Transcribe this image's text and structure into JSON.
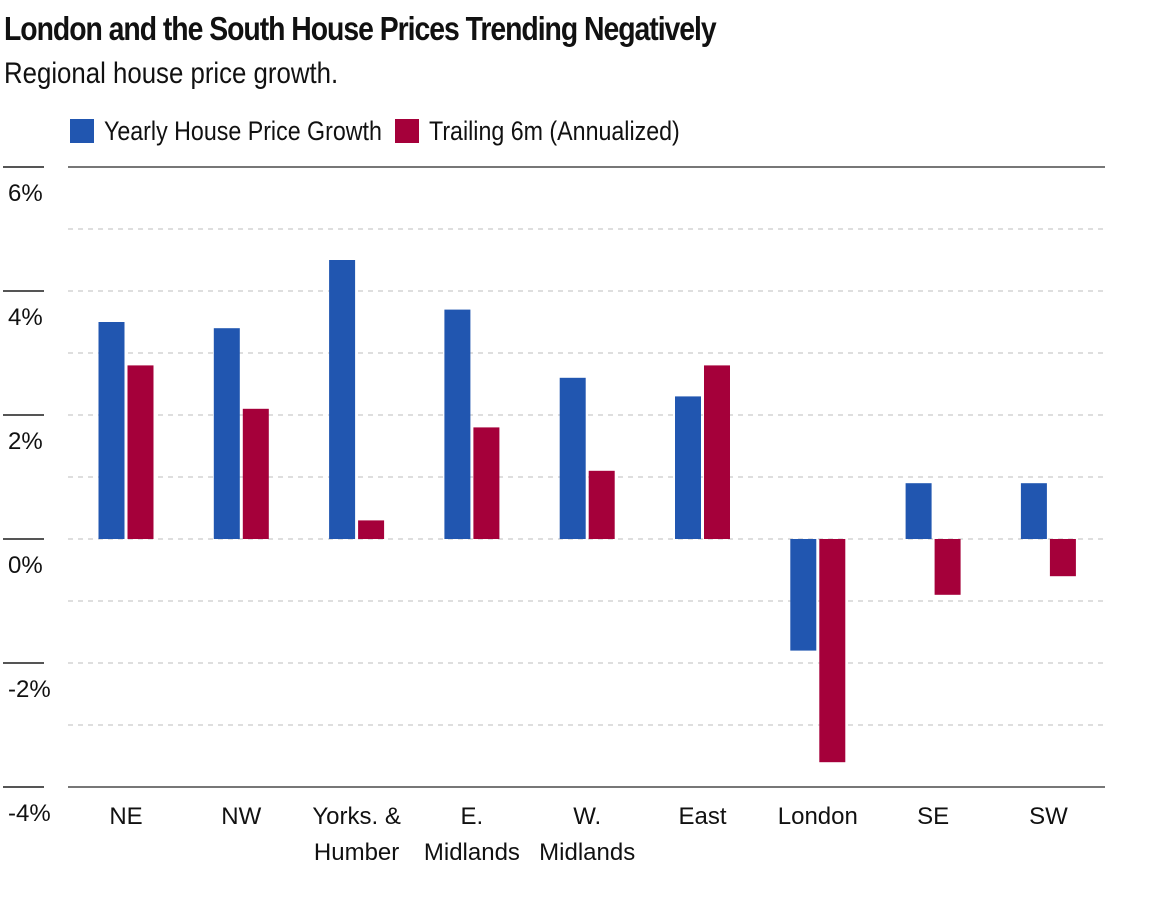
{
  "header": {
    "title": "London and the South House Prices Trending Negatively",
    "subtitle": "Regional house price growth."
  },
  "chart_data": {
    "type": "bar",
    "title": "London and the South House Prices Trending Negatively",
    "subtitle": "Regional house price growth.",
    "xlabel": "",
    "ylabel": "",
    "categories": [
      [
        "NE"
      ],
      [
        "NW"
      ],
      [
        "Yorks. &",
        "Humber"
      ],
      [
        "E.",
        "Midlands"
      ],
      [
        "W.",
        "Midlands"
      ],
      [
        "East"
      ],
      [
        "London"
      ],
      [
        "SE"
      ],
      [
        "SW"
      ]
    ],
    "series": [
      {
        "name": "Yearly House Price Growth",
        "color": "#2156b0",
        "values": [
          3.5,
          3.4,
          4.5,
          3.7,
          2.6,
          2.3,
          -1.8,
          0.9,
          0.9
        ]
      },
      {
        "name": "Trailing 6m (Annualized)",
        "color": "#a5003a",
        "values": [
          2.8,
          2.1,
          0.3,
          1.8,
          1.1,
          2.8,
          -3.6,
          -0.9,
          -0.6
        ]
      }
    ],
    "yticks": [
      6,
      4,
      2,
      0,
      -2,
      -4
    ],
    "ytick_labels": [
      "6%",
      "4%",
      "2%",
      "0%",
      "-2%",
      "-4%"
    ],
    "ylim": [
      -4,
      6
    ],
    "grid": true,
    "legend_position": "top-left"
  }
}
